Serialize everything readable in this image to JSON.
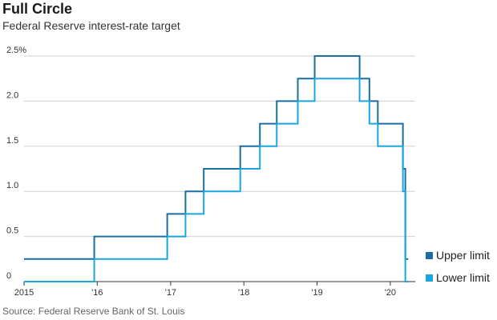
{
  "header": {
    "title": "Full Circle",
    "subtitle": "Federal Reserve interest-rate target"
  },
  "footer": {
    "source": "Source: Federal Reserve Bank of St. Louis"
  },
  "colors": {
    "upper": "#1a6fa0",
    "lower": "#1aa7e0",
    "grid": "#cfcfcf",
    "axis": "#333333"
  },
  "chart_data": {
    "type": "line",
    "step": true,
    "title": "Full Circle",
    "subtitle": "Federal Reserve interest-rate target",
    "xlabel": "",
    "ylabel": "",
    "xlim": [
      "2015-01-01",
      "2020-03-31"
    ],
    "ylim": [
      0,
      2.5
    ],
    "grid": true,
    "legend_position": "bottom-right",
    "y_ticks": [
      {
        "value": 0,
        "label": "0"
      },
      {
        "value": 0.5,
        "label": "0.5"
      },
      {
        "value": 1.0,
        "label": "1.0"
      },
      {
        "value": 1.5,
        "label": "1.5"
      },
      {
        "value": 2.0,
        "label": "2.0"
      },
      {
        "value": 2.5,
        "label": "2.5%"
      }
    ],
    "x_ticks": [
      {
        "date": "2015-01-01",
        "label": "2015"
      },
      {
        "date": "2016-01-01",
        "label": "'16"
      },
      {
        "date": "2017-01-01",
        "label": "'17"
      },
      {
        "date": "2018-01-01",
        "label": "'18"
      },
      {
        "date": "2019-01-01",
        "label": "'19"
      },
      {
        "date": "2020-01-01",
        "label": "'20"
      }
    ],
    "series": [
      {
        "name": "Upper limit",
        "points": [
          [
            "2015-01-01",
            0.25
          ],
          [
            "2015-12-17",
            0.5
          ],
          [
            "2016-12-15",
            0.75
          ],
          [
            "2017-03-16",
            1.0
          ],
          [
            "2017-06-15",
            1.25
          ],
          [
            "2017-12-14",
            1.5
          ],
          [
            "2018-03-22",
            1.75
          ],
          [
            "2018-06-14",
            2.0
          ],
          [
            "2018-09-27",
            2.25
          ],
          [
            "2018-12-20",
            2.5
          ],
          [
            "2019-08-01",
            2.25
          ],
          [
            "2019-09-19",
            2.0
          ],
          [
            "2019-10-31",
            1.75
          ],
          [
            "2020-03-04",
            1.25
          ],
          [
            "2020-03-16",
            0.25
          ],
          [
            "2020-03-31",
            0.25
          ]
        ]
      },
      {
        "name": "Lower limit",
        "points": [
          [
            "2015-01-01",
            0.0
          ],
          [
            "2015-12-17",
            0.25
          ],
          [
            "2016-12-15",
            0.5
          ],
          [
            "2017-03-16",
            0.75
          ],
          [
            "2017-06-15",
            1.0
          ],
          [
            "2017-12-14",
            1.25
          ],
          [
            "2018-03-22",
            1.5
          ],
          [
            "2018-06-14",
            1.75
          ],
          [
            "2018-09-27",
            2.0
          ],
          [
            "2018-12-20",
            2.25
          ],
          [
            "2019-08-01",
            2.0
          ],
          [
            "2019-09-19",
            1.75
          ],
          [
            "2019-10-31",
            1.5
          ],
          [
            "2020-03-04",
            1.0
          ],
          [
            "2020-03-16",
            0.0
          ],
          [
            "2020-03-31",
            0.0
          ]
        ]
      }
    ]
  }
}
